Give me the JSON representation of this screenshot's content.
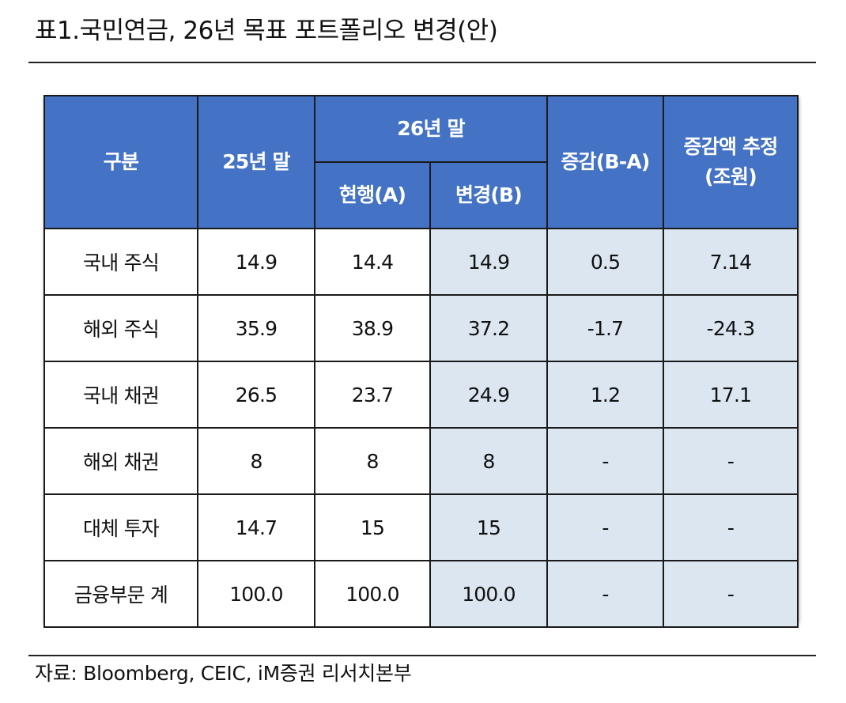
{
  "document": {
    "title": "표1.국민연금, 26년 목표 포트폴리오 변경(안)",
    "source": "자료: Bloomberg, CEIC, iM증권 리서치본부"
  },
  "table": {
    "headers": {
      "category": "구분",
      "y25_end": "25년 말",
      "y26_end": "26년 말",
      "current": "현행(A)",
      "changed": "변경(B)",
      "diff": "증감(B-A)",
      "est_amount_line1": "증감액 추정",
      "est_amount_line2": "(조원)"
    },
    "rows": [
      {
        "label": "국내 주식",
        "y25": "14.9",
        "current": "14.4",
        "changed": "14.9",
        "diff": "0.5",
        "amount": "7.14"
      },
      {
        "label": "해외 주식",
        "y25": "35.9",
        "current": "38.9",
        "changed": "37.2",
        "diff": "-1.7",
        "amount": "-24.3"
      },
      {
        "label": "국내 채권",
        "y25": "26.5",
        "current": "23.7",
        "changed": "24.9",
        "diff": "1.2",
        "amount": "17.1"
      },
      {
        "label": "해외 채권",
        "y25": "8",
        "current": "8",
        "changed": "8",
        "diff": "-",
        "amount": "-"
      },
      {
        "label": "대체 투자",
        "y25": "14.7",
        "current": "15",
        "changed": "15",
        "diff": "-",
        "amount": "-"
      },
      {
        "label": "금융부문 계",
        "y25": "100.0",
        "current": "100.0",
        "changed": "100.0",
        "diff": "-",
        "amount": "-"
      }
    ]
  },
  "colors": {
    "header_bg": "#4472c4",
    "shaded_cell_bg": "#dce6f1"
  }
}
